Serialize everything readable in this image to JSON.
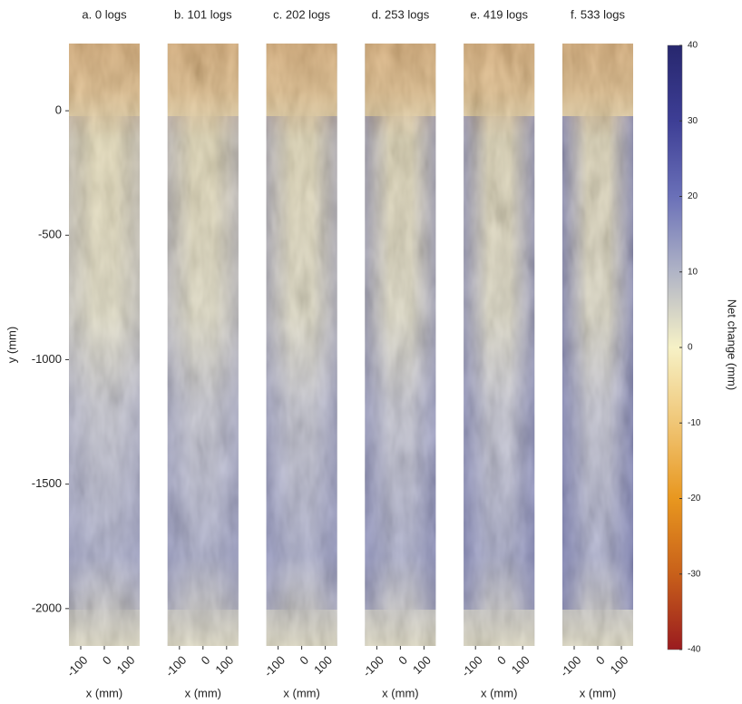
{
  "chart_data": [
    {
      "type": "image",
      "title": "a. 0 logs",
      "xlabel": "x (mm)",
      "ylabel": "y (mm)",
      "xlim": [
        -150,
        150
      ],
      "xticks": [
        -100,
        0,
        100
      ],
      "ylim": [
        -2150,
        270
      ],
      "yticks": [
        0,
        -500,
        -1000,
        -1500,
        -2000
      ]
    },
    {
      "type": "image",
      "title": "b. 101 logs",
      "xlabel": "x (mm)",
      "xlim": [
        -150,
        150
      ],
      "xticks": [
        -100,
        0,
        100
      ]
    },
    {
      "type": "image",
      "title": "c. 202 logs",
      "xlabel": "x (mm)",
      "xlim": [
        -150,
        150
      ],
      "xticks": [
        -100,
        0,
        100
      ]
    },
    {
      "type": "image",
      "title": "d. 253 logs",
      "xlabel": "x (mm)",
      "xlim": [
        -150,
        150
      ],
      "xticks": [
        -100,
        0,
        100
      ]
    },
    {
      "type": "image",
      "title": "e. 419 logs",
      "xlabel": "x (mm)",
      "xlim": [
        -150,
        150
      ],
      "xticks": [
        -100,
        0,
        100
      ]
    },
    {
      "type": "image",
      "title": "f. 533 logs",
      "xlabel": "x (mm)",
      "xlim": [
        -150,
        150
      ],
      "xticks": [
        -100,
        0,
        100
      ]
    },
    {
      "type": "colorbar",
      "label": "Net change (mm)",
      "clim": [
        -40,
        40
      ],
      "cticks": [
        -40,
        -30,
        -20,
        -10,
        0,
        10,
        20,
        30,
        40
      ],
      "colormap": [
        "#9a1b1f",
        "#c8601a",
        "#e8971f",
        "#f0c676",
        "#f6f1c6",
        "#b0b4c6",
        "#6a70b8",
        "#3d3e95",
        "#27276e"
      ]
    }
  ]
}
